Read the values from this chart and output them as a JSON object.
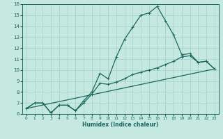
{
  "title": "",
  "xlabel": "Humidex (Indice chaleur)",
  "ylabel": "",
  "bg_color": "#c5e8e0",
  "grid_color": "#a8d4cc",
  "line_color": "#1a6860",
  "xlim": [
    -0.5,
    23.5
  ],
  "ylim": [
    6,
    16
  ],
  "xticks": [
    0,
    1,
    2,
    3,
    4,
    5,
    6,
    7,
    8,
    9,
    10,
    11,
    12,
    13,
    14,
    15,
    16,
    17,
    18,
    19,
    20,
    21,
    22,
    23
  ],
  "yticks": [
    6,
    7,
    8,
    9,
    10,
    11,
    12,
    13,
    14,
    15,
    16
  ],
  "series1_x": [
    0,
    1,
    2,
    3,
    4,
    5,
    6,
    7,
    8,
    9,
    10,
    11,
    12,
    13,
    14,
    15,
    16,
    17,
    18,
    19,
    20,
    21,
    22,
    23
  ],
  "series1_y": [
    6.5,
    7.0,
    7.0,
    6.1,
    6.8,
    6.8,
    6.3,
    7.2,
    8.0,
    9.7,
    9.2,
    11.2,
    12.8,
    13.9,
    15.0,
    15.2,
    15.8,
    14.5,
    13.2,
    11.4,
    11.5,
    10.7,
    10.8,
    10.1
  ],
  "series2_x": [
    0,
    1,
    2,
    3,
    4,
    5,
    6,
    7,
    8,
    9,
    10,
    11,
    12,
    13,
    14,
    15,
    16,
    17,
    18,
    19,
    20,
    21,
    22,
    23
  ],
  "series2_y": [
    6.5,
    7.0,
    7.0,
    6.1,
    6.8,
    6.8,
    6.3,
    7.0,
    7.8,
    8.8,
    8.7,
    8.9,
    9.2,
    9.6,
    9.8,
    10.0,
    10.2,
    10.5,
    10.8,
    11.2,
    11.3,
    10.7,
    10.8,
    10.1
  ],
  "series3_x": [
    0,
    23
  ],
  "series3_y": [
    6.5,
    10.1
  ],
  "marker": "+"
}
